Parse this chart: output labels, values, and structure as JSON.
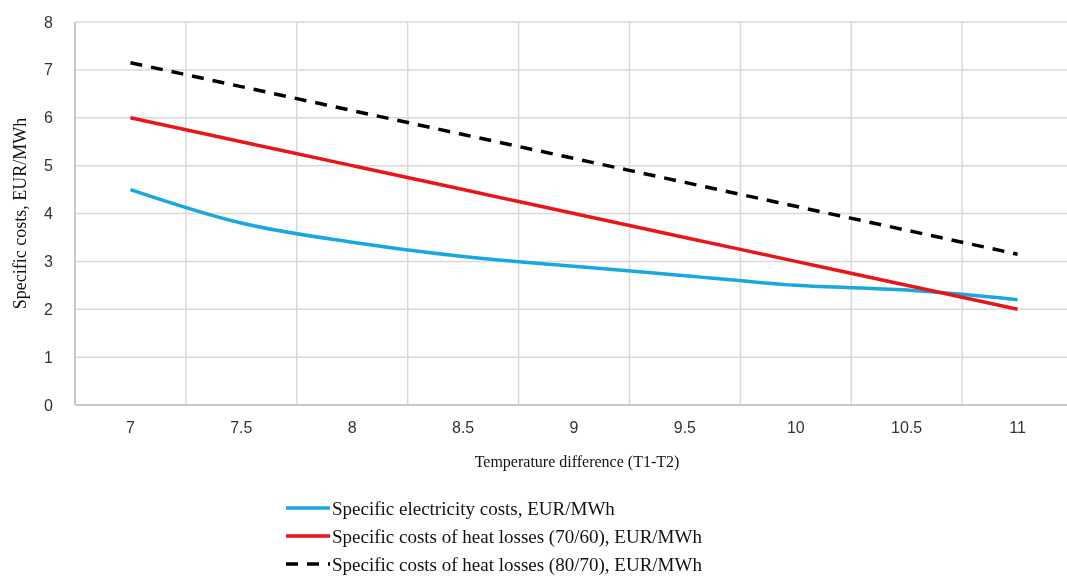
{
  "chart_data": {
    "type": "line",
    "xlabel": "Temperature difference (T1-T2)",
    "ylabel": "Specific costs, EUR/MWh",
    "categories": [
      "7",
      "7.5",
      "8",
      "8.5",
      "9",
      "9.5",
      "10",
      "10.5",
      "11"
    ],
    "series": [
      {
        "name": "Specific electricity costs, EUR/MWh",
        "color": "#1aa7e0",
        "values": [
          4.5,
          3.8,
          3.4,
          3.1,
          2.9,
          2.7,
          2.5,
          2.4,
          2.2
        ]
      },
      {
        "name": "Specific costs of heat losses (70/60), EUR/MWh",
        "color": "#e8151b",
        "values": [
          6,
          5.5,
          5,
          4.5,
          4,
          3.5,
          3,
          2.5,
          2
        ]
      },
      {
        "name": "Specific costs of heat losses (80/70), EUR/MWh",
        "color": "#000000",
        "line_style": "dashed",
        "values": [
          7.15,
          6.65,
          6.15,
          5.65,
          5.15,
          4.65,
          4.15,
          3.65,
          3.15
        ]
      }
    ],
    "ylim": [
      0,
      8
    ],
    "yticks": [
      0,
      1,
      2,
      3,
      4,
      5,
      6,
      7,
      8
    ],
    "grid": true,
    "legend": "bottom",
    "marker": "none"
  }
}
